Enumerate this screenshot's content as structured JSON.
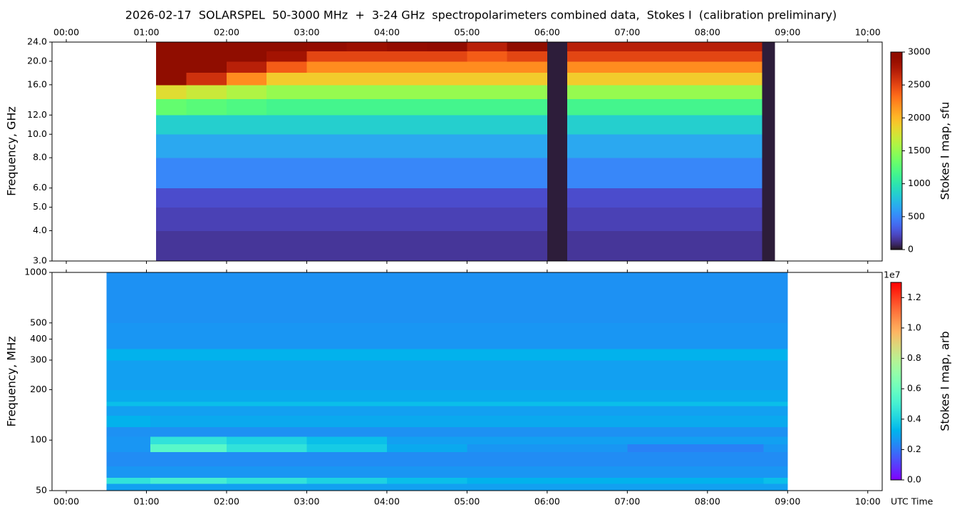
{
  "chart_data": [
    {
      "type": "heatmap",
      "title": "2026-02-17  SOLARSPEL  50-3000 MHz  +  3-24 GHz  spectropolarimeters combined data,  Stokes I  (calibration preliminary)",
      "y_label": "Frequency, GHz",
      "colorbar_label": "Stokes I map, sfu",
      "colormap": "turbo",
      "xtick_labels_position": "top",
      "yscale": "log",
      "xlim": [
        -0.178,
        10.18
      ],
      "ylim": [
        3,
        24
      ],
      "xticks": [
        {
          "value": 0,
          "label": "00:00"
        },
        {
          "value": 1,
          "label": "01:00"
        },
        {
          "value": 2,
          "label": "02:00"
        },
        {
          "value": 3,
          "label": "03:00"
        },
        {
          "value": 4,
          "label": "04:00"
        },
        {
          "value": 5,
          "label": "05:00"
        },
        {
          "value": 6,
          "label": "06:00"
        },
        {
          "value": 7,
          "label": "07:00"
        },
        {
          "value": 8,
          "label": "08:00"
        },
        {
          "value": 9,
          "label": "09:00"
        },
        {
          "value": 10,
          "label": "10:00"
        }
      ],
      "yticks": [
        {
          "value": 3,
          "label": "3.0"
        },
        {
          "value": 4,
          "label": "4.0"
        },
        {
          "value": 5,
          "label": "5.0"
        },
        {
          "value": 6,
          "label": "6.0"
        },
        {
          "value": 8,
          "label": "8.0"
        },
        {
          "value": 10,
          "label": "10.0"
        },
        {
          "value": 12,
          "label": "12.0"
        },
        {
          "value": 16,
          "label": "16.0"
        },
        {
          "value": 20,
          "label": "20.0"
        },
        {
          "value": 24,
          "label": "24.0"
        }
      ],
      "clim": [
        0,
        3000
      ],
      "cticks": [
        0,
        500,
        1000,
        1500,
        2000,
        2500,
        3000
      ],
      "x": [
        1.12,
        1.5,
        2.0,
        2.5,
        3.0,
        3.5,
        4.0,
        4.5,
        5.0,
        5.5,
        6.0,
        6.25,
        7.0,
        7.5,
        8.0,
        8.68,
        8.84
      ],
      "y": [
        3,
        4,
        5,
        6,
        8,
        10,
        12,
        14,
        16,
        18,
        20,
        22,
        24
      ],
      "z": [
        [
          150,
          150,
          150,
          150,
          150,
          150,
          150,
          150,
          150,
          150,
          30,
          150,
          150,
          150,
          150,
          30
        ],
        [
          200,
          200,
          200,
          200,
          200,
          200,
          200,
          200,
          200,
          200,
          30,
          200,
          200,
          200,
          200,
          30
        ],
        [
          250,
          250,
          250,
          250,
          250,
          250,
          250,
          250,
          250,
          250,
          30,
          250,
          250,
          250,
          250,
          30
        ],
        [
          500,
          500,
          500,
          500,
          500,
          500,
          500,
          500,
          500,
          500,
          30,
          500,
          500,
          500,
          500,
          30
        ],
        [
          650,
          650,
          650,
          650,
          650,
          650,
          650,
          650,
          650,
          650,
          30,
          650,
          650,
          650,
          650,
          30
        ],
        [
          850,
          850,
          850,
          850,
          850,
          850,
          850,
          850,
          850,
          850,
          30,
          850,
          850,
          850,
          850,
          30
        ],
        [
          1300,
          1250,
          1200,
          1150,
          1150,
          1150,
          1150,
          1150,
          1150,
          1150,
          30,
          1150,
          1150,
          1150,
          1150,
          30
        ],
        [
          1800,
          1700,
          1600,
          1500,
          1500,
          1500,
          1500,
          1500,
          1500,
          1500,
          30,
          1500,
          1500,
          1500,
          1500,
          30
        ],
        [
          3000,
          2600,
          2200,
          1900,
          1900,
          1900,
          1900,
          1900,
          1900,
          1900,
          30,
          1900,
          1900,
          1900,
          1900,
          30
        ],
        [
          3000,
          3000,
          2700,
          2400,
          2200,
          2200,
          2200,
          2200,
          2200,
          2200,
          30,
          2200,
          2200,
          2200,
          2200,
          30
        ],
        [
          3000,
          3000,
          3000,
          2800,
          2500,
          2500,
          2500,
          2500,
          2400,
          2500,
          30,
          2500,
          2500,
          2500,
          2500,
          30
        ],
        [
          3000,
          3000,
          3000,
          3000,
          2900,
          2850,
          2900,
          2950,
          2700,
          3000,
          30,
          2700,
          2700,
          2700,
          2700,
          30
        ]
      ]
    },
    {
      "type": "heatmap",
      "y_label": "Frequency, MHz",
      "x_label": "UTC Time",
      "colorbar_label": "Stokes I map, arb",
      "colorbar_offset_label": "1e7",
      "colormap": "rainbow",
      "xtick_labels_position": "bottom",
      "yscale": "log",
      "xlim": [
        -0.178,
        10.18
      ],
      "ylim": [
        50,
        1000
      ],
      "xticks": [
        {
          "value": 0,
          "label": "00:00"
        },
        {
          "value": 1,
          "label": "01:00"
        },
        {
          "value": 2,
          "label": "02:00"
        },
        {
          "value": 3,
          "label": "03:00"
        },
        {
          "value": 4,
          "label": "04:00"
        },
        {
          "value": 5,
          "label": "05:00"
        },
        {
          "value": 6,
          "label": "06:00"
        },
        {
          "value": 7,
          "label": "07:00"
        },
        {
          "value": 8,
          "label": "08:00"
        },
        {
          "value": 9,
          "label": "09:00"
        },
        {
          "value": 10,
          "label": "10:00"
        }
      ],
      "yticks": [
        50,
        100,
        200,
        300,
        400,
        500,
        1000
      ],
      "clim": [
        0,
        13000000
      ],
      "cticks": [
        {
          "value": 0,
          "label": "0.0"
        },
        {
          "value": 2000000,
          "label": "0.2"
        },
        {
          "value": 4000000,
          "label": "0.4"
        },
        {
          "value": 6000000,
          "label": "0.6"
        },
        {
          "value": 8000000,
          "label": "0.8"
        },
        {
          "value": 10000000,
          "label": "1.0"
        },
        {
          "value": 12000000,
          "label": "1.2"
        }
      ],
      "x": [
        0.5,
        1.05,
        2.0,
        3.0,
        4.0,
        5.0,
        6.0,
        7.0,
        8.0,
        8.7,
        9.0
      ],
      "y": [
        50,
        55,
        60,
        70,
        85,
        95,
        105,
        120,
        140,
        160,
        170,
        200,
        300,
        350,
        500,
        1000
      ],
      "z": [
        [
          2800000,
          2800000,
          2800000,
          2800000,
          2800000,
          2800000,
          2800000,
          2800000,
          2800000,
          2800000
        ],
        [
          4500000,
          5000000,
          4500000,
          4000000,
          3500000,
          3200000,
          3200000,
          3200000,
          3200000,
          3500000
        ],
        [
          2600000,
          2600000,
          2600000,
          2600000,
          2600000,
          2600000,
          2600000,
          2600000,
          2600000,
          2600000
        ],
        [
          2400000,
          2400000,
          2400000,
          2400000,
          2400000,
          2400000,
          2400000,
          2400000,
          2400000,
          2400000
        ],
        [
          2600000,
          5500000,
          4500000,
          3800000,
          3000000,
          2600000,
          2600000,
          2200000,
          2200000,
          2600000
        ],
        [
          2600000,
          4500000,
          4000000,
          3500000,
          2800000,
          2800000,
          2800000,
          2800000,
          2800000,
          2800000
        ],
        [
          2500000,
          2500000,
          2500000,
          2500000,
          2500000,
          2500000,
          2500000,
          2500000,
          2500000,
          2500000
        ],
        [
          3200000,
          3000000,
          3000000,
          3000000,
          3000000,
          3000000,
          3000000,
          3000000,
          3000000,
          3000000
        ],
        [
          2800000,
          2800000,
          2800000,
          2800000,
          2800000,
          2800000,
          2800000,
          2800000,
          2800000,
          2800000
        ],
        [
          3500000,
          3500000,
          3500000,
          3500000,
          3500000,
          3500000,
          3500000,
          3500000,
          3500000,
          3500000
        ],
        [
          3000000,
          3000000,
          3000000,
          3000000,
          3000000,
          3000000,
          3000000,
          3000000,
          3000000,
          3000000
        ],
        [
          2800000,
          2800000,
          2800000,
          2800000,
          2800000,
          2800000,
          2800000,
          2800000,
          2800000,
          2800000
        ],
        [
          3200000,
          3200000,
          3200000,
          3200000,
          3200000,
          3200000,
          3200000,
          3200000,
          3200000,
          3200000
        ],
        [
          2600000,
          2600000,
          2600000,
          2600000,
          2600000,
          2600000,
          2600000,
          2600000,
          2600000,
          2600000
        ],
        [
          2500000,
          2500000,
          2500000,
          2500000,
          2500000,
          2500000,
          2500000,
          2500000,
          2500000,
          2500000
        ]
      ]
    }
  ]
}
